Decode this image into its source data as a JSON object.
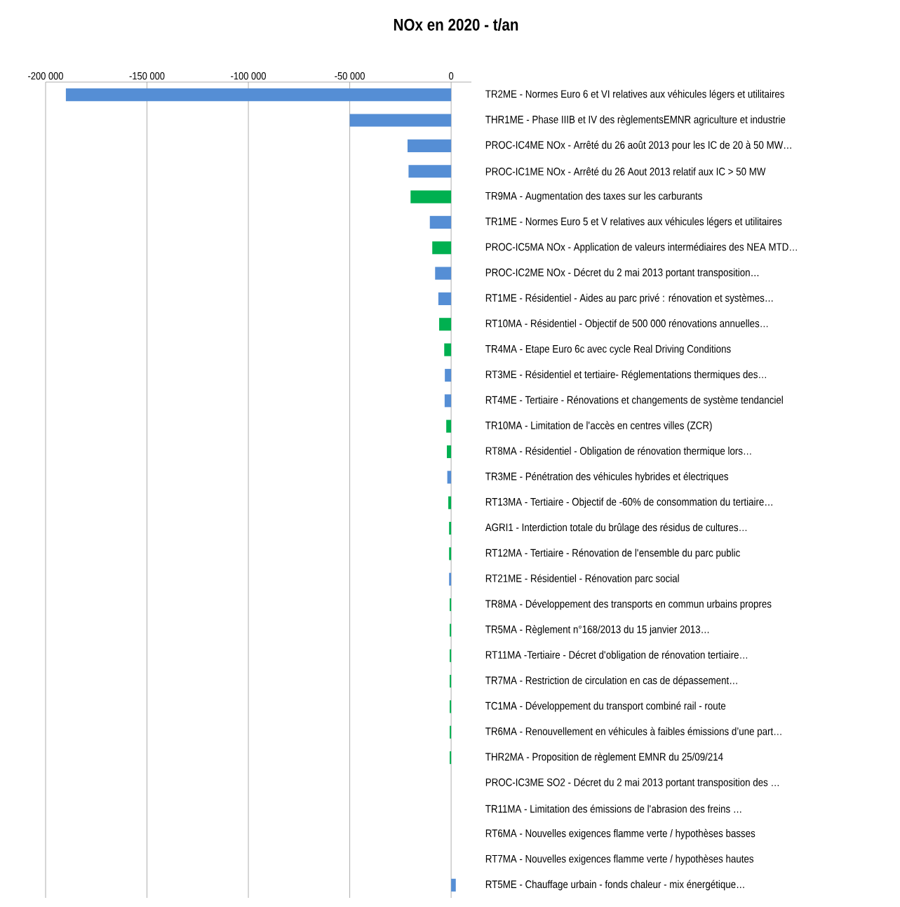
{
  "chart_data": {
    "type": "bar",
    "orientation": "horizontal",
    "title": "**NOx en 2020 - t/an**",
    "categories": [
      "TR2ME - Normes Euro 6 et VI relatives aux véhicules légers et utilitaires",
      "THR1ME - Phase IIIB et IV des règlementsEMNR agriculture et industrie",
      "PROC-IC4ME NOx - Arrêté du 26 août 2013 pour les IC de 20 à 50 MW…",
      "PROC-IC1ME NOx - Arrêté du 26 Aout 2013 relatif aux IC > 50 MW",
      "TR9MA - Augmentation des taxes sur les carburants",
      "TR1ME - Normes Euro 5 et V relatives aux véhicules légers et utilitaires",
      "PROC-IC5MA NOx - Application de valeurs intermédiaires des NEA MTD…",
      "PROC-IC2ME NOx - Décret du 2 mai 2013 portant transposition…",
      "RT1ME - Résidentiel - Aides au parc privé : rénovation et systèmes…",
      "RT10MA - Résidentiel - Objectif de 500 000 rénovations annuelles…",
      "TR4MA - Etape Euro 6c avec cycle Real Driving Conditions",
      "RT3ME - Résidentiel et tertiaire- Réglementations thermiques des…",
      "RT4ME - Tertiaire - Rénovations et changements de système tendanciel",
      "TR10MA - Limitation de l'accès en centres villes (ZCR)",
      "RT8MA - Résidentiel - Obligation de rénovation thermique lors…",
      "TR3ME - Pénétration des véhicules hybrides et électriques",
      "RT13MA - Tertiaire - Objectif de -60% de consommation du tertiaire…",
      "AGRI1 - Interdiction totale du brûlage des résidus de cultures…",
      "RT12MA - Tertiaire - Rénovation de l'ensemble du parc public",
      "RT21ME - Résidentiel - Rénovation parc social",
      "TR8MA - Développement des transports en commun urbains propres",
      "TR5MA - Règlement n°168/2013 du 15 janvier 2013…",
      "RT11MA -Tertiaire - Décret d'obligation de rénovation tertiaire…",
      "TR7MA - Restriction de circulation en cas de dépassement…",
      "TC1MA - Développement du transport combiné rail - route",
      "TR6MA - Renouvellement en véhicules à faibles émissions d’une part…",
      "THR2MA - Proposition de règlement EMNR du 25/09/214",
      "PROC-IC3ME SO2 - Décret du 2 mai 2013 portant transposition des …",
      "TR11MA - Limitation des émissions de l'abrasion des freins …",
      "RT6MA - Nouvelles exigences flamme verte / hypothèses basses",
      "RT7MA - Nouvelles exigences flamme verte / hypothèses hautes",
      "RT5ME - Chauffage urbain - fonds chaleur - mix énergétique…"
    ],
    "values": [
      -190000,
      -50000,
      -21500,
      -21000,
      -20000,
      -10500,
      -9300,
      -7900,
      -6300,
      -5900,
      -3400,
      -3100,
      -3200,
      -2400,
      -2100,
      -1900,
      -1400,
      -1000,
      -1000,
      -1000,
      -700,
      -700,
      -700,
      -700,
      -700,
      -700,
      -700,
      0,
      0,
      0,
      0,
      2300
    ],
    "colors": [
      "#558ed5",
      "#558ed5",
      "#558ed5",
      "#558ed5",
      "#00b050",
      "#558ed5",
      "#00b050",
      "#558ed5",
      "#558ed5",
      "#00b050",
      "#00b050",
      "#558ed5",
      "#558ed5",
      "#00b050",
      "#00b050",
      "#558ed5",
      "#00b050",
      "#00b050",
      "#00b050",
      "#558ed5",
      "#00b050",
      "#00b050",
      "#00b050",
      "#00b050",
      "#00b050",
      "#00b050",
      "#00b050",
      "#558ed5",
      "#00b050",
      "#00b050",
      "#00b050",
      "#558ed5"
    ],
    "xlim": [
      -200000,
      10000
    ],
    "xticks": [
      {
        "value": -200000,
        "label": "-200 000"
      },
      {
        "value": -150000,
        "label": "-150 000"
      },
      {
        "value": -100000,
        "label": "-100 000"
      },
      {
        "value": -50000,
        "label": "-50 000"
      },
      0
    ],
    "grid": "x"
  }
}
